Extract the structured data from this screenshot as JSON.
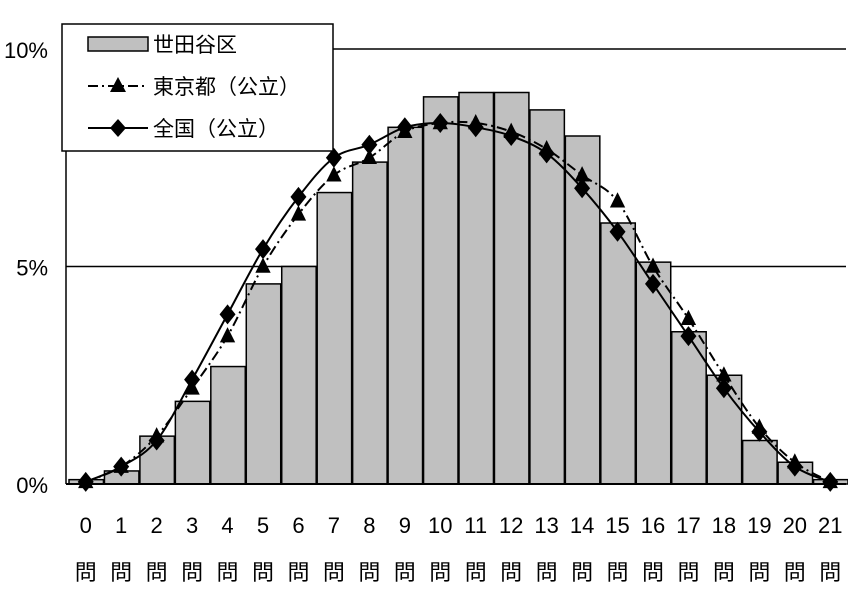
{
  "chart_data": {
    "type": "bar",
    "categories": [
      "0",
      "1",
      "2",
      "3",
      "4",
      "5",
      "6",
      "7",
      "8",
      "9",
      "10",
      "11",
      "12",
      "13",
      "14",
      "15",
      "16",
      "17",
      "18",
      "19",
      "20",
      "21"
    ],
    "category_suffix": "問",
    "ylim": [
      0,
      10
    ],
    "yticks": [
      {
        "value": 0,
        "label": "0%"
      },
      {
        "value": 5,
        "label": "5%"
      },
      {
        "value": 10,
        "label": "10%"
      }
    ],
    "gridlines": [
      5,
      10
    ],
    "legend_position": "top-left",
    "series": [
      {
        "name": "世田谷区",
        "kind": "bar",
        "color": "#c0c0c0",
        "values": [
          0.1,
          0.3,
          1.1,
          1.9,
          2.7,
          4.6,
          5.0,
          6.7,
          7.4,
          8.2,
          8.9,
          9.0,
          9.0,
          8.6,
          8.0,
          6.0,
          5.1,
          3.5,
          2.5,
          1.0,
          0.5,
          0.1
        ]
      },
      {
        "name": "東京都（公立）",
        "kind": "line",
        "line_style": "dashed",
        "marker": "triangle",
        "color": "#000000",
        "values": [
          0.05,
          0.4,
          1.1,
          2.2,
          3.4,
          5.0,
          6.2,
          7.1,
          7.5,
          8.1,
          8.3,
          8.3,
          8.1,
          7.7,
          7.1,
          6.5,
          5.0,
          3.8,
          2.5,
          1.3,
          0.5,
          0.05
        ]
      },
      {
        "name": "全国（公立）",
        "kind": "line",
        "line_style": "solid",
        "marker": "diamond",
        "color": "#000000",
        "values": [
          0.05,
          0.4,
          1.0,
          2.4,
          3.9,
          5.4,
          6.6,
          7.5,
          7.8,
          8.2,
          8.3,
          8.2,
          8.0,
          7.6,
          6.8,
          5.8,
          4.6,
          3.4,
          2.2,
          1.2,
          0.4,
          0.05
        ]
      }
    ]
  }
}
